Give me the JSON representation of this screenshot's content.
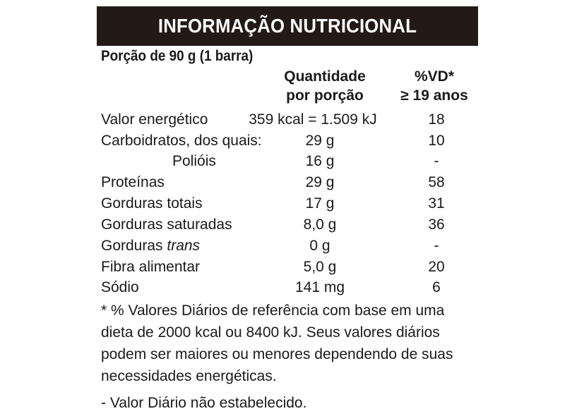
{
  "title": "INFORMAÇÃO NUTRICIONAL",
  "portion": "Porção de 90 g (1 barra)",
  "headers": {
    "qty_line1": "Quantidade",
    "qty_line2": "por porção",
    "vd_line1": "%VD*",
    "vd_line2": "≥ 19 anos"
  },
  "rows": [
    {
      "label": "Valor energético",
      "qty": "359 kcal = 1.509 kJ",
      "vd": "18"
    },
    {
      "label": "Carboidratos, dos quais:",
      "qty": "29 g",
      "vd": "10"
    },
    {
      "label": "Polióis",
      "qty": "16 g",
      "vd": "-"
    },
    {
      "label": "Proteínas",
      "qty": "29 g",
      "vd": "58"
    },
    {
      "label": "Gorduras totais",
      "qty": "17 g",
      "vd": "31"
    },
    {
      "label": "Gorduras saturadas",
      "qty": "8,0 g",
      "vd": "36"
    },
    {
      "label_prefix": "Gorduras ",
      "label_italic": "trans",
      "qty": "0 g",
      "vd": "-"
    },
    {
      "label": "Fibra alimentar",
      "qty": "5,0 g",
      "vd": "20"
    },
    {
      "label": "Sódio",
      "qty": "141 mg",
      "vd": "6"
    }
  ],
  "footnote_lines": [
    "* % Valores Diários de referência com base em uma",
    "dieta de 2000 kcal ou 8400 kJ. Seus valores diários",
    "podem ser maiores ou menores dependendo de suas",
    "necessidades energéticas."
  ],
  "not_established": "- Valor Diário não estabelecido."
}
